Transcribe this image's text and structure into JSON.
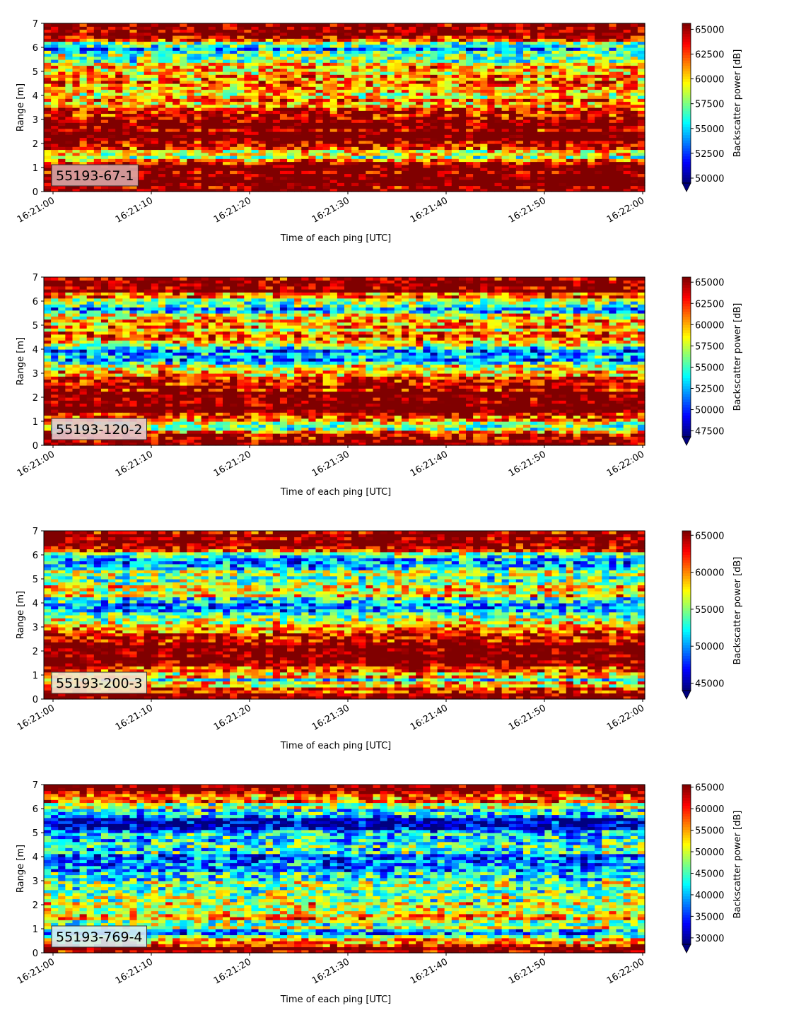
{
  "figure": {
    "x_axis_label": "Time of each ping [UTC]",
    "y_axis_label": "Range [m]",
    "colorbar_label": "Backscatter power [dB]",
    "colormap": "jet",
    "colormap_over_color": "#7f0000",
    "colormap_under_color": "#00007f"
  },
  "chart_data": [
    {
      "type": "heatmap",
      "panel_label": "55193-67-1",
      "panel_label_bg": "#d9a6a6",
      "xlabel": "Time of each ping [UTC]",
      "ylabel": "Range [m]",
      "x_ticks": [
        "16:21:00",
        "16:21:10",
        "16:21:20",
        "16:21:30",
        "16:21:40",
        "16:21:50",
        "16:22:00"
      ],
      "x_range": [
        "16:21:00",
        "16:22:00"
      ],
      "y_ticks": [
        0,
        1,
        2,
        3,
        4,
        5,
        6,
        7
      ],
      "ylim": [
        0,
        7
      ],
      "colorbar_label": "Backscatter power [dB]",
      "colorbar_ticks": [
        50000,
        52500,
        55000,
        57500,
        60000,
        62500,
        65000
      ],
      "colorbar_range": [
        49500,
        65600
      ],
      "colorbar_extend": "min",
      "range_profile": [
        {
          "range_m": 0.1,
          "level": "high"
        },
        {
          "range_m": 0.5,
          "level": "high"
        },
        {
          "range_m": 1.0,
          "level": "high"
        },
        {
          "range_m": 1.5,
          "level": "mid"
        },
        {
          "range_m": 2.0,
          "level": "high"
        },
        {
          "range_m": 2.5,
          "level": "high"
        },
        {
          "range_m": 3.0,
          "level": "high"
        },
        {
          "range_m": 3.5,
          "level": "mid-high"
        },
        {
          "range_m": 4.0,
          "level": "mid-high"
        },
        {
          "range_m": 4.5,
          "level": "mid-high"
        },
        {
          "range_m": 5.0,
          "level": "mid-high"
        },
        {
          "range_m": 5.5,
          "level": "mid"
        },
        {
          "range_m": 6.0,
          "level": "mid-low"
        },
        {
          "range_m": 6.5,
          "level": "high"
        },
        {
          "range_m": 7.0,
          "level": "high"
        }
      ]
    },
    {
      "type": "heatmap",
      "panel_label": "55193-120-2",
      "panel_label_bg": "#e3c9cf",
      "xlabel": "Time of each ping [UTC]",
      "ylabel": "Range [m]",
      "x_ticks": [
        "16:21:00",
        "16:21:10",
        "16:21:20",
        "16:21:30",
        "16:21:40",
        "16:21:50",
        "16:22:00"
      ],
      "x_range": [
        "16:21:00",
        "16:22:00"
      ],
      "y_ticks": [
        0,
        1,
        2,
        3,
        4,
        5,
        6,
        7
      ],
      "ylim": [
        0,
        7
      ],
      "colorbar_label": "Backscatter power [dB]",
      "colorbar_ticks": [
        47500,
        50000,
        52500,
        55000,
        57500,
        60000,
        62500,
        65000
      ],
      "colorbar_range": [
        46800,
        65600
      ],
      "colorbar_extend": "min",
      "range_profile": [
        {
          "range_m": 0.2,
          "level": "high"
        },
        {
          "range_m": 0.8,
          "level": "mid"
        },
        {
          "range_m": 1.5,
          "level": "high"
        },
        {
          "range_m": 2.2,
          "level": "high"
        },
        {
          "range_m": 3.0,
          "level": "mid-high"
        },
        {
          "range_m": 3.8,
          "level": "low"
        },
        {
          "range_m": 4.5,
          "level": "mid-high"
        },
        {
          "range_m": 5.2,
          "level": "mid-high"
        },
        {
          "range_m": 5.8,
          "level": "mid-low"
        },
        {
          "range_m": 6.5,
          "level": "high"
        }
      ]
    },
    {
      "type": "heatmap",
      "panel_label": "55193-200-3",
      "panel_label_bg": "#f2e6cf",
      "xlabel": "Time of each ping [UTC]",
      "ylabel": "Range [m]",
      "x_ticks": [
        "16:21:00",
        "16:21:10",
        "16:21:20",
        "16:21:30",
        "16:21:40",
        "16:21:50",
        "16:22:00"
      ],
      "x_range": [
        "16:21:00",
        "16:22:00"
      ],
      "y_ticks": [
        0,
        1,
        2,
        3,
        4,
        5,
        6,
        7
      ],
      "ylim": [
        0,
        7
      ],
      "colorbar_label": "Backscatter power [dB]",
      "colorbar_ticks": [
        45000,
        50000,
        55000,
        60000,
        65000
      ],
      "colorbar_range": [
        44000,
        65600
      ],
      "colorbar_extend": "min",
      "range_profile": [
        {
          "range_m": 0.2,
          "level": "high"
        },
        {
          "range_m": 0.8,
          "level": "mid"
        },
        {
          "range_m": 1.5,
          "level": "high"
        },
        {
          "range_m": 2.2,
          "level": "high"
        },
        {
          "range_m": 3.0,
          "level": "mid-high"
        },
        {
          "range_m": 3.8,
          "level": "low"
        },
        {
          "range_m": 4.5,
          "level": "mid-high"
        },
        {
          "range_m": 5.2,
          "level": "mid"
        },
        {
          "range_m": 5.8,
          "level": "mid-low"
        },
        {
          "range_m": 6.5,
          "level": "high"
        }
      ]
    },
    {
      "type": "heatmap",
      "panel_label": "55193-769-4",
      "panel_label_bg": "#d4ecf4",
      "xlabel": "Time of each ping [UTC]",
      "ylabel": "Range [m]",
      "x_ticks": [
        "16:21:00",
        "16:21:10",
        "16:21:20",
        "16:21:30",
        "16:21:40",
        "16:21:50",
        "16:22:00"
      ],
      "x_range": [
        "16:21:00",
        "16:22:00"
      ],
      "y_ticks": [
        0,
        1,
        2,
        3,
        4,
        5,
        6,
        7
      ],
      "ylim": [
        0,
        7
      ],
      "colorbar_label": "Backscatter power [dB]",
      "colorbar_ticks": [
        30000,
        35000,
        40000,
        45000,
        50000,
        55000,
        60000,
        65000
      ],
      "colorbar_range": [
        28500,
        65600
      ],
      "colorbar_extend": "min",
      "range_profile": [
        {
          "range_m": 0.2,
          "level": "high"
        },
        {
          "range_m": 0.8,
          "level": "mid-low"
        },
        {
          "range_m": 1.5,
          "level": "mid-high"
        },
        {
          "range_m": 2.2,
          "level": "mid"
        },
        {
          "range_m": 3.0,
          "level": "mid"
        },
        {
          "range_m": 3.8,
          "level": "low"
        },
        {
          "range_m": 4.5,
          "level": "mid"
        },
        {
          "range_m": 5.5,
          "level": "very-low"
        },
        {
          "range_m": 6.3,
          "level": "mid-high"
        },
        {
          "range_m": 6.8,
          "level": "high"
        }
      ]
    }
  ]
}
